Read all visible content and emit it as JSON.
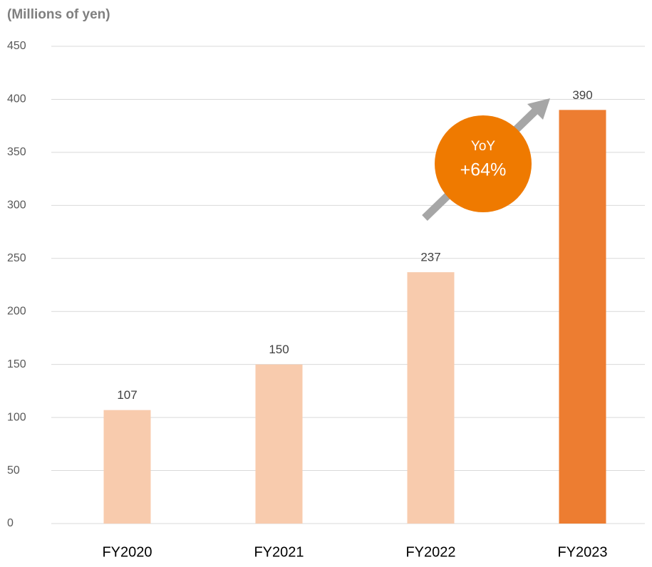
{
  "chart_data": {
    "type": "bar",
    "ylabel": "(Millions of yen)",
    "categories": [
      "FY2020",
      "FY2021",
      "FY2022",
      "FY2023"
    ],
    "values": [
      107,
      150,
      237,
      390
    ],
    "colors": [
      "#f8cbad",
      "#f8cbad",
      "#f8cbad",
      "#ed7d31"
    ],
    "ylim": [
      0,
      450
    ],
    "yticks": [
      0,
      50,
      100,
      150,
      200,
      250,
      300,
      350,
      400,
      450
    ],
    "grid": true,
    "annotation": {
      "lines": [
        "YoY",
        "+64%"
      ],
      "color": "#ef7a00"
    }
  }
}
